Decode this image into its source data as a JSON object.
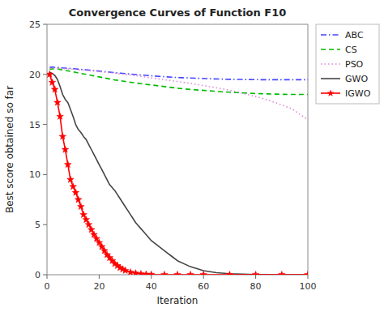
{
  "chart_data": {
    "type": "line",
    "title": "Convergence Curves of Function F10",
    "x_label": "Iteration",
    "y_label": "Best score obtained so far",
    "xlim": [
      0,
      100
    ],
    "ylim": [
      0,
      25
    ],
    "xticks": [
      0,
      20,
      40,
      60,
      80,
      100
    ],
    "yticks": [
      0,
      5,
      10,
      15,
      20,
      25
    ],
    "legend": "upper right",
    "series": [
      {
        "name": "ABC",
        "color": "#4444FF",
        "line_style": "dash-dot",
        "x": [
          1,
          2,
          3,
          4,
          5,
          6,
          7,
          8,
          9,
          10,
          11,
          12,
          13,
          14,
          15,
          16,
          17,
          18,
          19,
          20,
          22,
          24,
          26,
          28,
          30,
          32,
          34,
          36,
          38,
          40,
          43,
          46,
          49,
          52,
          55,
          58,
          61,
          64,
          67,
          70,
          73,
          76,
          79,
          82,
          85,
          88,
          91,
          94,
          97,
          100
        ],
        "values": [
          20.7,
          20.72,
          20.71,
          20.7,
          20.68,
          20.65,
          20.63,
          20.61,
          20.59,
          20.57,
          20.55,
          20.52,
          20.5,
          20.48,
          20.46,
          20.43,
          20.41,
          20.38,
          20.36,
          20.33,
          20.28,
          20.23,
          20.18,
          20.13,
          20.08,
          20.03,
          19.98,
          19.94,
          19.9,
          19.86,
          19.8,
          19.75,
          19.7,
          19.67,
          19.64,
          19.61,
          19.58,
          19.55,
          19.53,
          19.51,
          19.5,
          19.49,
          19.48,
          19.47,
          19.47,
          19.47,
          19.47,
          19.47,
          19.47,
          19.47
        ]
      },
      {
        "name": "CS",
        "color": "#00BB00",
        "line_style": "dashed",
        "x": [
          1,
          2,
          3,
          4,
          5,
          6,
          7,
          8,
          9,
          10,
          11,
          12,
          13,
          14,
          15,
          16,
          17,
          18,
          19,
          20,
          22,
          24,
          26,
          28,
          30,
          32,
          34,
          36,
          38,
          40,
          43,
          46,
          49,
          52,
          55,
          58,
          61,
          64,
          67,
          70,
          73,
          76,
          79,
          82,
          85,
          88,
          91,
          94,
          97,
          100
        ],
        "values": [
          20.5,
          20.55,
          20.58,
          20.55,
          20.5,
          20.45,
          20.4,
          20.35,
          20.3,
          20.25,
          20.2,
          20.15,
          20.1,
          20.05,
          20.0,
          19.95,
          19.9,
          19.85,
          19.8,
          19.75,
          19.65,
          19.55,
          19.45,
          19.38,
          19.3,
          19.22,
          19.15,
          19.08,
          19.0,
          18.95,
          18.85,
          18.75,
          18.65,
          18.56,
          18.5,
          18.44,
          18.38,
          18.32,
          18.26,
          18.22,
          18.18,
          18.14,
          18.1,
          18.07,
          18.05,
          18.03,
          18.01,
          18.0,
          18.0,
          18.0
        ]
      },
      {
        "name": "PSO",
        "color": "#DD88DD",
        "line_style": "dotted",
        "x": [
          1,
          2,
          3,
          4,
          5,
          6,
          7,
          8,
          9,
          10,
          12,
          14,
          16,
          18,
          20,
          22,
          24,
          26,
          28,
          30,
          32,
          34,
          36,
          38,
          40,
          43,
          46,
          49,
          52,
          55,
          58,
          61,
          64,
          67,
          70,
          73,
          76,
          79,
          82,
          85,
          88,
          91,
          94,
          97,
          100
        ],
        "values": [
          20.6,
          20.62,
          20.63,
          20.62,
          20.6,
          20.58,
          20.56,
          20.54,
          20.52,
          20.5,
          20.46,
          20.42,
          20.38,
          20.33,
          20.28,
          20.23,
          20.17,
          20.12,
          20.06,
          20.0,
          19.93,
          19.87,
          19.8,
          19.73,
          19.65,
          19.55,
          19.44,
          19.33,
          19.22,
          19.1,
          18.97,
          18.84,
          18.71,
          18.57,
          18.42,
          18.25,
          18.05,
          17.85,
          17.65,
          17.4,
          17.15,
          16.85,
          16.55,
          16.0,
          15.5
        ]
      },
      {
        "name": "GWO",
        "color": "#444444",
        "line_style": "solid",
        "x": [
          1,
          2,
          3,
          4,
          5,
          6,
          7,
          8,
          9,
          10,
          11,
          12,
          13,
          14,
          15,
          16,
          17,
          18,
          19,
          20,
          21,
          22,
          23,
          24,
          25,
          26,
          27,
          28,
          29,
          30,
          31,
          32,
          33,
          34,
          35,
          36,
          37,
          38,
          39,
          40,
          42,
          44,
          46,
          48,
          50,
          55,
          60,
          65,
          70,
          75,
          80,
          90,
          100
        ],
        "values": [
          20.2,
          20.1,
          19.9,
          19.5,
          18.8,
          18.0,
          17.5,
          17.2,
          16.5,
          15.8,
          15.0,
          14.5,
          14.2,
          13.8,
          13.5,
          13.0,
          12.5,
          12.0,
          11.5,
          11.0,
          10.5,
          10.0,
          9.5,
          9.0,
          8.7,
          8.4,
          8.0,
          7.6,
          7.2,
          6.8,
          6.4,
          6.0,
          5.6,
          5.2,
          4.9,
          4.6,
          4.3,
          4.0,
          3.7,
          3.4,
          3.0,
          2.6,
          2.2,
          1.8,
          1.4,
          0.8,
          0.4,
          0.2,
          0.1,
          0.05,
          0.02,
          0.005,
          0.002
        ]
      },
      {
        "name": "IGWO",
        "color": "#FF0000",
        "line_style": "solid",
        "marker": "star",
        "x": [
          1,
          2,
          3,
          4,
          5,
          6,
          7,
          8,
          9,
          10,
          11,
          12,
          13,
          14,
          15,
          16,
          17,
          18,
          19,
          20,
          21,
          22,
          23,
          24,
          25,
          26,
          27,
          28,
          29,
          30,
          32,
          34,
          36,
          38,
          40,
          45,
          50,
          55,
          60,
          70,
          80,
          90,
          100
        ],
        "values": [
          20.0,
          19.2,
          18.5,
          17.2,
          15.8,
          13.8,
          12.5,
          11.0,
          9.5,
          8.8,
          8.2,
          7.5,
          6.8,
          6.0,
          5.5,
          5.0,
          4.5,
          4.0,
          3.6,
          3.2,
          2.8,
          2.4,
          2.0,
          1.7,
          1.4,
          1.1,
          0.9,
          0.7,
          0.55,
          0.42,
          0.25,
          0.15,
          0.08,
          0.04,
          0.02,
          0.005,
          0.002,
          0.001,
          0.001,
          0.001,
          0.001,
          0.001,
          0.001
        ]
      }
    ]
  }
}
